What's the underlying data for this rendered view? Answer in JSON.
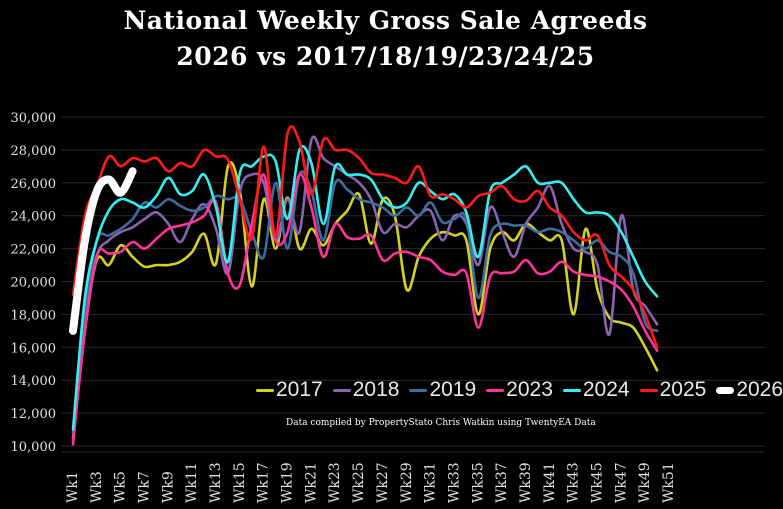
{
  "chart_data": {
    "type": "line",
    "title": "National Weekly Gross Sale Agreeds",
    "subtitle": "2026 vs 2017/18/19/23/24/25",
    "note": "Data compiled by PropertyStato Chris Watkin using TwentyEA Data",
    "xlabel": "",
    "ylabel": "",
    "ylim": [
      10000,
      30000
    ],
    "yticks": [
      "10,000",
      "12,000",
      "14,000",
      "16,000",
      "18,000",
      "20,000",
      "22,000",
      "24,000",
      "26,000",
      "28,000",
      "30,000"
    ],
    "xticks": [
      "Wk1",
      "Wk3",
      "Wk5",
      "Wk7",
      "Wk9",
      "Wk11",
      "Wk13",
      "Wk15",
      "Wk17",
      "Wk19",
      "Wk21",
      "Wk23",
      "Wk25",
      "Wk27",
      "Wk29",
      "Wk31",
      "Wk33",
      "Wk35",
      "Wk37",
      "Wk39",
      "Wk41",
      "Wk43",
      "Wk45",
      "Wk47",
      "Wk49",
      "Wk51"
    ],
    "grid": true,
    "legend_position": "bottom-right",
    "series": [
      {
        "name": "2017",
        "color": "#d4d21e",
        "values": [
          10500,
          17000,
          21300,
          21000,
          22200,
          21500,
          20900,
          21000,
          21000,
          21200,
          21800,
          22900,
          21100,
          27000,
          25500,
          19700,
          25000,
          22000,
          25100,
          22000,
          23200,
          22200,
          23500,
          24300,
          25300,
          22300,
          25000,
          24000,
          19500,
          21500,
          22600,
          23000,
          22800,
          22500,
          18000,
          22000,
          23000,
          22500,
          23500,
          23000,
          22500,
          22500,
          18000,
          23200,
          19500,
          17800,
          17500,
          17200,
          16000,
          14600
        ]
      },
      {
        "name": "2018",
        "color": "#8a63b0",
        "values": [
          10300,
          17000,
          21500,
          22500,
          23000,
          23300,
          23800,
          24200,
          23500,
          22400,
          23800,
          24700,
          23200,
          20500,
          25500,
          26500,
          26000,
          22500,
          25000,
          23000,
          28600,
          27500,
          27000,
          26500,
          26000,
          25000,
          23000,
          23500,
          23300,
          24000,
          24300,
          22500,
          24000,
          23500,
          21000,
          24500,
          23000,
          21500,
          23500,
          24500,
          25800,
          23500,
          22000,
          21800,
          21000,
          16800,
          24000,
          19500,
          18500,
          17400
        ]
      },
      {
        "name": "2019",
        "color": "#3e6ea0",
        "values": [
          10800,
          18000,
          22500,
          22800,
          23200,
          23800,
          24800,
          24500,
          25000,
          24600,
          24300,
          24500,
          25200,
          25000,
          25000,
          23000,
          21500,
          26000,
          22000,
          26500,
          25500,
          22500,
          26000,
          25600,
          25000,
          24800,
          24500,
          24000,
          24500,
          24000,
          24800,
          23600,
          23800,
          23800,
          19000,
          22800,
          23500,
          23400,
          23400,
          23000,
          23200,
          23000,
          22500,
          22000,
          22500,
          21800,
          21500,
          20500,
          17500,
          17000
        ]
      },
      {
        "name": "2023",
        "color": "#ff3399",
        "values": [
          10100,
          17000,
          21600,
          21700,
          21800,
          22400,
          22000,
          22600,
          23200,
          23400,
          23600,
          24000,
          24800,
          20500,
          19800,
          23500,
          26500,
          22500,
          23000,
          26500,
          24500,
          21500,
          23500,
          22700,
          22600,
          22800,
          21300,
          21700,
          21800,
          21500,
          21300,
          20600,
          20400,
          20500,
          17200,
          20300,
          20500,
          20600,
          21300,
          20500,
          20600,
          21200,
          20600,
          20400,
          20300,
          20000,
          19500,
          18500,
          17000,
          15800
        ]
      },
      {
        "name": "2024",
        "color": "#33f0f0",
        "values": [
          11000,
          19000,
          22500,
          24300,
          25000,
          24800,
          24500,
          25200,
          26300,
          25300,
          25500,
          26500,
          24500,
          21200,
          26600,
          27000,
          27600,
          27300,
          23800,
          28000,
          27200,
          23500,
          27000,
          26500,
          26500,
          26200,
          25000,
          24500,
          24800,
          26000,
          25500,
          25000,
          25300,
          24200,
          21500,
          25500,
          26000,
          26500,
          27000,
          26000,
          26000,
          26000,
          25000,
          24200,
          24200,
          24000,
          23000,
          21500,
          20000,
          19100
        ]
      },
      {
        "name": "2025",
        "color": "#ff1a1a",
        "values": [
          19200,
          24000,
          25800,
          27600,
          27000,
          27500,
          27300,
          27500,
          26700,
          27200,
          27000,
          28000,
          27600,
          27400,
          25000,
          22600,
          28200,
          22800,
          29000,
          28500,
          25300,
          28600,
          28000,
          28000,
          27500,
          26600,
          26500,
          26300,
          26000,
          27000,
          25200,
          25300,
          25000,
          24500,
          25200,
          25400,
          25800,
          25000,
          24900,
          25500,
          24500,
          24000,
          23000,
          22500,
          22800,
          21000,
          20300,
          19500,
          18000,
          16000
        ]
      },
      {
        "name": "2026",
        "color": "#ffffff",
        "values": [
          17000,
          22500,
          25500,
          26200,
          25400,
          26700
        ]
      }
    ]
  }
}
